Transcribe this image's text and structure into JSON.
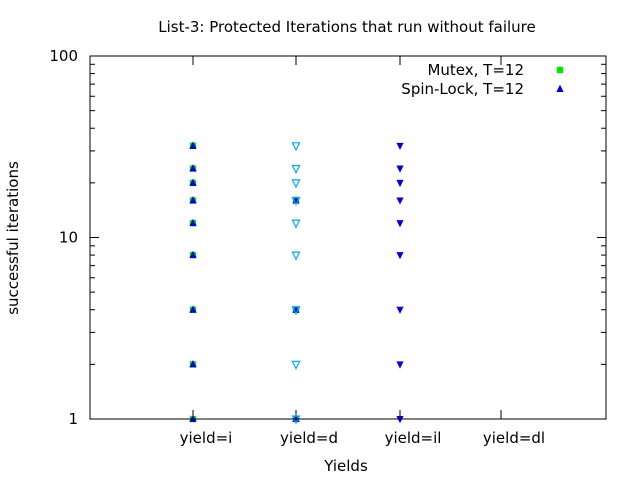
{
  "chart_data": {
    "type": "scatter",
    "title": "List-3: Protected Iterations that run without failure",
    "xlabel": "Yields",
    "ylabel": "successful iterations",
    "y_scale": "log",
    "ylim": [
      1,
      100
    ],
    "y_major_ticks": [
      {
        "value": 1,
        "label": "1"
      },
      {
        "value": 10,
        "label": "10"
      },
      {
        "value": 100,
        "label": "100"
      }
    ],
    "categories": [
      "yield=i",
      "yield=d",
      "yield=il",
      "yield=dl"
    ],
    "legend_position": "top-right",
    "grid": false,
    "series": [
      {
        "name": "Mutex, T=12",
        "marker": "square",
        "color": "#00e600",
        "points": [
          {
            "x": "yield=i",
            "y": [
              1,
              2,
              4,
              8,
              12,
              16,
              20,
              24,
              32
            ]
          },
          {
            "x": "yield=d",
            "y": [
              1,
              4,
              16
            ]
          },
          {
            "x": "yield=il",
            "y": []
          },
          {
            "x": "yield=dl",
            "y": []
          }
        ]
      },
      {
        "name": "Spin-Lock, T=12",
        "marker": "triangle-up",
        "color": "#0000e6",
        "points": [
          {
            "x": "yield=i",
            "y": [
              1,
              2,
              4,
              8,
              12,
              16,
              20,
              24,
              32
            ]
          },
          {
            "x": "yield=d",
            "y": [
              1,
              4,
              16
            ]
          },
          {
            "x": "yield=il",
            "y": []
          },
          {
            "x": "yield=dl",
            "y": []
          }
        ]
      },
      {
        "name": "",
        "marker": "triangle-down-open",
        "color": "#00aaff",
        "points": [
          {
            "x": "yield=i",
            "y": []
          },
          {
            "x": "yield=d",
            "y": [
              1,
              2,
              4,
              8,
              12,
              16,
              20,
              24,
              32
            ]
          },
          {
            "x": "yield=il",
            "y": []
          },
          {
            "x": "yield=dl",
            "y": []
          }
        ]
      },
      {
        "name": "",
        "marker": "triangle-down",
        "color": "#0000e6",
        "points": [
          {
            "x": "yield=i",
            "y": []
          },
          {
            "x": "yield=d",
            "y": []
          },
          {
            "x": "yield=il",
            "y": [
              1,
              2,
              4,
              8,
              12,
              16,
              20,
              24,
              32
            ]
          },
          {
            "x": "yield=dl",
            "y": []
          }
        ]
      }
    ]
  }
}
